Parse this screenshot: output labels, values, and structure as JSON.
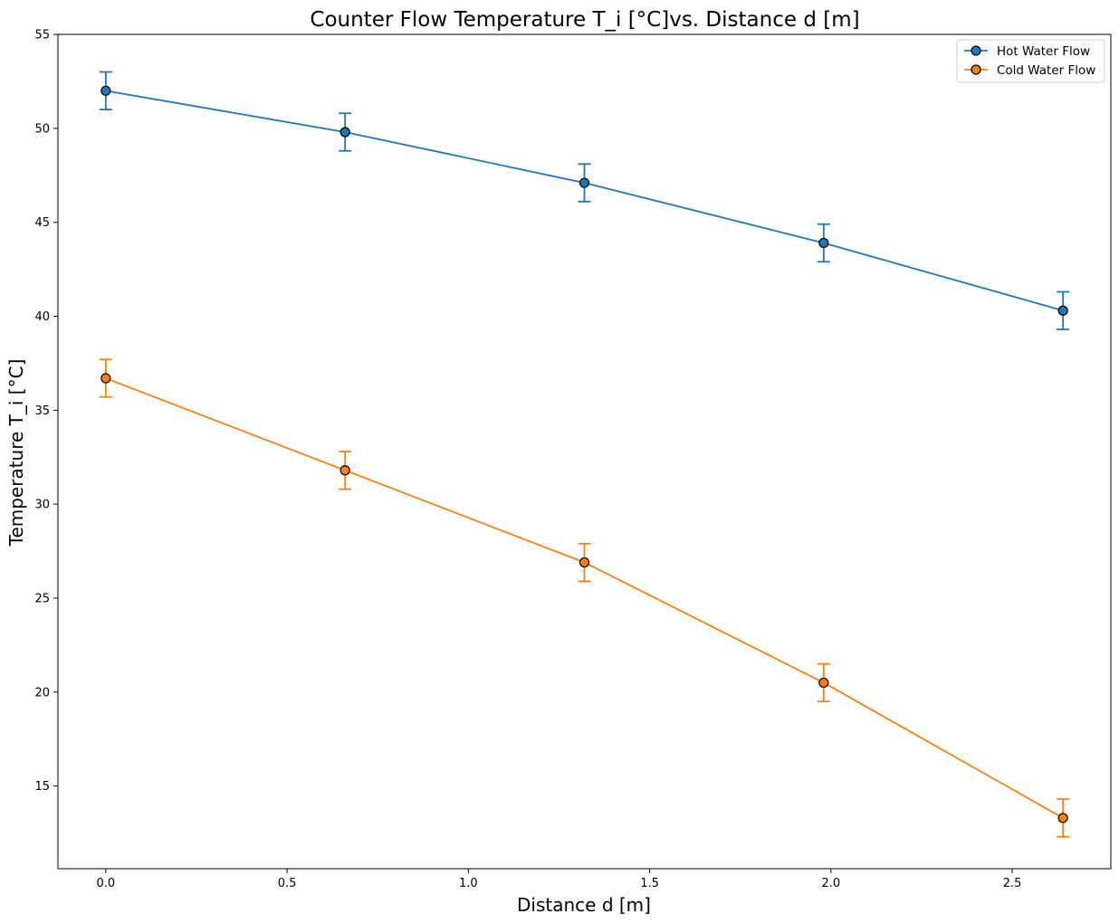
{
  "chart_data": {
    "type": "line",
    "title": "Counter Flow Temperature T_i [°C]vs. Distance d [m]",
    "xlabel": "Distance d [m]",
    "ylabel": "Temperature T_i [°C]",
    "xlim": [
      -0.132,
      2.772
    ],
    "ylim": [
      10.6,
      55
    ],
    "xticks": [
      0.0,
      0.5,
      1.0,
      1.5,
      2.0,
      2.5
    ],
    "xtick_labels": [
      "0.0",
      "0.5",
      "1.0",
      "1.5",
      "2.0",
      "2.5"
    ],
    "yticks": [
      15,
      20,
      25,
      30,
      35,
      40,
      45,
      50,
      55
    ],
    "ytick_labels": [
      "15",
      "20",
      "25",
      "30",
      "35",
      "40",
      "45",
      "50",
      "55"
    ],
    "grid": false,
    "legend_position": "top-right",
    "x": [
      0.0,
      0.66,
      1.32,
      1.98,
      2.64
    ],
    "series": [
      {
        "name": "Hot Water Flow",
        "color": "#1f77b4",
        "values": [
          52.0,
          49.8,
          47.1,
          43.9,
          40.3
        ],
        "error": [
          1.0,
          1.0,
          1.0,
          1.0,
          1.0
        ]
      },
      {
        "name": "Cold Water Flow",
        "color": "#ff7f0e",
        "values": [
          36.7,
          31.8,
          26.9,
          20.5,
          13.3
        ],
        "error": [
          1.0,
          1.0,
          1.0,
          1.0,
          1.0
        ]
      }
    ]
  }
}
